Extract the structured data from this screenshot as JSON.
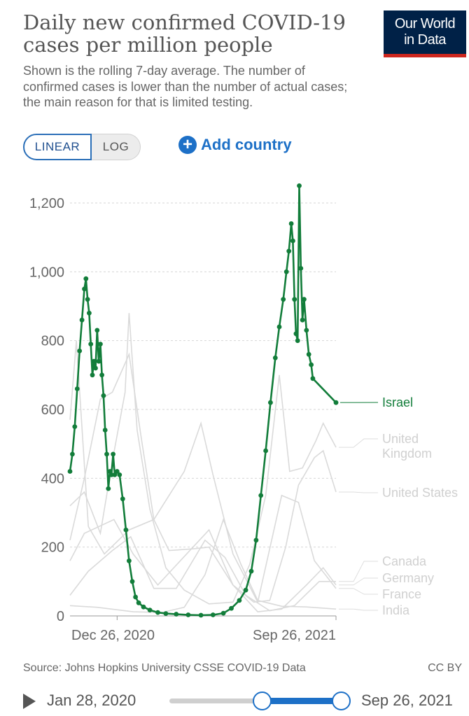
{
  "header": {
    "title": "Daily new confirmed COVID-19 cases per million people",
    "subtitle": "Shown is the rolling 7-day average. The number of confirmed cases is lower than the number of actual cases; the main reason for that is limited testing.",
    "logo_line1": "Our World",
    "logo_line2": "in Data"
  },
  "controls": {
    "linear_label": "LINEAR",
    "log_label": "LOG",
    "add_country_label": "Add country",
    "add_icon": "plus-circle-icon"
  },
  "footer": {
    "source": "Source: Johns Hopkins University CSSE COVID-19 Data",
    "license": "CC BY"
  },
  "timeline": {
    "start_label": "Jan 28, 2020",
    "end_label": "Sep 26, 2021",
    "selection_start_fraction": 0.54,
    "selection_end_fraction": 1.0,
    "play_icon": "play-icon"
  },
  "colors": {
    "highlight": "#127d3a",
    "muted": "#dadada",
    "brand_navy": "#002147",
    "brand_red": "#ce261e",
    "accent_blue": "#1d70c7"
  },
  "chart_data": {
    "type": "line",
    "title": "Daily new confirmed COVID-19 cases per million people",
    "ylim": [
      0,
      1250
    ],
    "y_ticks": [
      0,
      200,
      400,
      600,
      800,
      1000,
      1200
    ],
    "y_tick_labels": [
      "0",
      "200",
      "400",
      "600",
      "800",
      "1,000",
      "1,200"
    ],
    "x_range": [
      "2020-10-28",
      "2021-09-26"
    ],
    "x_ticks": [
      "2020-12-26",
      "2021-09-26"
    ],
    "x_tick_labels": [
      "Dec 26, 2020",
      "Sep 26, 2021"
    ],
    "grid": "horizontal-dashed",
    "legend_placement": "right, at line ends",
    "highlighted_series": "Israel",
    "series": [
      {
        "name": "Israel",
        "highlight": true,
        "points": [
          [
            "2020-10-28",
            420
          ],
          [
            "2020-10-31",
            470
          ],
          [
            "2020-11-03",
            550
          ],
          [
            "2020-11-06",
            660
          ],
          [
            "2020-11-09",
            770
          ],
          [
            "2020-11-12",
            860
          ],
          [
            "2020-11-15",
            950
          ],
          [
            "2020-11-17",
            980
          ],
          [
            "2020-11-19",
            920
          ],
          [
            "2020-11-21",
            880
          ],
          [
            "2020-11-23",
            790
          ],
          [
            "2020-11-25",
            700
          ],
          [
            "2020-11-27",
            740
          ],
          [
            "2020-11-29",
            720
          ],
          [
            "2020-12-01",
            830
          ],
          [
            "2020-12-03",
            740
          ],
          [
            "2020-12-05",
            790
          ],
          [
            "2020-12-07",
            700
          ],
          [
            "2020-12-09",
            640
          ],
          [
            "2020-12-11",
            540
          ],
          [
            "2020-12-13",
            470
          ],
          [
            "2020-12-15",
            370
          ],
          [
            "2020-12-17",
            420
          ],
          [
            "2020-12-19",
            410
          ],
          [
            "2020-12-21",
            470
          ],
          [
            "2020-12-23",
            410
          ],
          [
            "2020-12-26",
            420
          ],
          [
            "2020-12-29",
            410
          ],
          [
            "2021-01-02",
            340
          ],
          [
            "2021-01-06",
            250
          ],
          [
            "2021-01-10",
            160
          ],
          [
            "2021-01-14",
            100
          ],
          [
            "2021-01-18",
            55
          ],
          [
            "2021-01-22",
            38
          ],
          [
            "2021-01-28",
            26
          ],
          [
            "2021-02-05",
            17
          ],
          [
            "2021-02-15",
            10
          ],
          [
            "2021-02-25",
            7
          ],
          [
            "2021-03-10",
            5
          ],
          [
            "2021-03-25",
            3
          ],
          [
            "2021-04-10",
            2
          ],
          [
            "2021-04-25",
            3
          ],
          [
            "2021-05-08",
            8
          ],
          [
            "2021-05-18",
            22
          ],
          [
            "2021-05-28",
            45
          ],
          [
            "2021-06-05",
            75
          ],
          [
            "2021-06-12",
            130
          ],
          [
            "2021-06-18",
            220
          ],
          [
            "2021-06-24",
            350
          ],
          [
            "2021-06-30",
            480
          ],
          [
            "2021-07-06",
            620
          ],
          [
            "2021-07-12",
            750
          ],
          [
            "2021-07-17",
            840
          ],
          [
            "2021-07-22",
            920
          ],
          [
            "2021-07-26",
            1000
          ],
          [
            "2021-07-29",
            1060
          ],
          [
            "2021-08-01",
            1140
          ],
          [
            "2021-08-03",
            1090
          ],
          [
            "2021-08-05",
            920
          ],
          [
            "2021-08-07",
            820
          ],
          [
            "2021-08-09",
            800
          ],
          [
            "2021-08-11",
            1250
          ],
          [
            "2021-08-13",
            1010
          ],
          [
            "2021-08-15",
            860
          ],
          [
            "2021-08-17",
            920
          ],
          [
            "2021-08-20",
            830
          ],
          [
            "2021-08-23",
            760
          ],
          [
            "2021-08-26",
            730
          ],
          [
            "2021-08-28",
            690
          ],
          [
            "2021-09-26",
            620
          ]
        ]
      },
      {
        "name": "United Kingdom",
        "points": [
          [
            "2020-10-28",
            320
          ],
          [
            "2020-11-15",
            360
          ],
          [
            "2020-12-05",
            240
          ],
          [
            "2020-12-20",
            450
          ],
          [
            "2021-01-05",
            650
          ],
          [
            "2021-01-10",
            880
          ],
          [
            "2021-01-20",
            540
          ],
          [
            "2021-02-05",
            310
          ],
          [
            "2021-02-25",
            140
          ],
          [
            "2021-03-20",
            75
          ],
          [
            "2021-04-20",
            35
          ],
          [
            "2021-05-20",
            40
          ],
          [
            "2021-06-10",
            150
          ],
          [
            "2021-06-30",
            350
          ],
          [
            "2021-07-17",
            700
          ],
          [
            "2021-07-30",
            420
          ],
          [
            "2021-08-15",
            430
          ],
          [
            "2021-09-01",
            510
          ],
          [
            "2021-09-10",
            560
          ],
          [
            "2021-09-26",
            490
          ]
        ]
      },
      {
        "name": "United States",
        "points": [
          [
            "2020-10-28",
            220
          ],
          [
            "2020-11-15",
            400
          ],
          [
            "2020-12-05",
            630
          ],
          [
            "2020-12-20",
            650
          ],
          [
            "2021-01-10",
            760
          ],
          [
            "2021-01-25",
            520
          ],
          [
            "2021-02-10",
            280
          ],
          [
            "2021-03-01",
            190
          ],
          [
            "2021-04-01",
            195
          ],
          [
            "2021-04-20",
            200
          ],
          [
            "2021-05-20",
            90
          ],
          [
            "2021-06-15",
            40
          ],
          [
            "2021-07-05",
            45
          ],
          [
            "2021-07-25",
            200
          ],
          [
            "2021-08-10",
            380
          ],
          [
            "2021-08-30",
            460
          ],
          [
            "2021-09-10",
            480
          ],
          [
            "2021-09-26",
            360
          ]
        ]
      },
      {
        "name": "Canada",
        "points": [
          [
            "2020-10-28",
            60
          ],
          [
            "2020-11-20",
            130
          ],
          [
            "2020-12-20",
            190
          ],
          [
            "2021-01-12",
            230
          ],
          [
            "2021-02-10",
            80
          ],
          [
            "2021-03-10",
            80
          ],
          [
            "2021-04-15",
            220
          ],
          [
            "2021-05-10",
            170
          ],
          [
            "2021-06-05",
            60
          ],
          [
            "2021-07-05",
            15
          ],
          [
            "2021-08-05",
            30
          ],
          [
            "2021-09-05",
            100
          ],
          [
            "2021-09-26",
            100
          ]
        ]
      },
      {
        "name": "Germany",
        "points": [
          [
            "2020-10-28",
            160
          ],
          [
            "2020-11-15",
            240
          ],
          [
            "2020-12-22",
            280
          ],
          [
            "2021-01-15",
            180
          ],
          [
            "2021-02-15",
            90
          ],
          [
            "2021-03-15",
            160
          ],
          [
            "2021-04-20",
            250
          ],
          [
            "2021-05-20",
            90
          ],
          [
            "2021-06-20",
            12
          ],
          [
            "2021-07-20",
            20
          ],
          [
            "2021-08-20",
            90
          ],
          [
            "2021-09-10",
            140
          ],
          [
            "2021-09-26",
            90
          ]
        ]
      },
      {
        "name": "France",
        "points": [
          [
            "2020-10-28",
            570
          ],
          [
            "2020-11-05",
            800
          ],
          [
            "2020-11-20",
            260
          ],
          [
            "2020-12-10",
            180
          ],
          [
            "2021-01-10",
            250
          ],
          [
            "2021-02-10",
            280
          ],
          [
            "2021-03-20",
            420
          ],
          [
            "2021-04-10",
            560
          ],
          [
            "2021-04-25",
            410
          ],
          [
            "2021-05-20",
            180
          ],
          [
            "2021-06-20",
            40
          ],
          [
            "2021-07-20",
            350
          ],
          [
            "2021-08-10",
            330
          ],
          [
            "2021-08-30",
            160
          ],
          [
            "2021-09-26",
            80
          ]
        ]
      },
      {
        "name": "India",
        "points": [
          [
            "2020-10-28",
            30
          ],
          [
            "2020-12-01",
            25
          ],
          [
            "2021-01-15",
            12
          ],
          [
            "2021-02-20",
            10
          ],
          [
            "2021-03-20",
            25
          ],
          [
            "2021-04-15",
            120
          ],
          [
            "2021-05-08",
            280
          ],
          [
            "2021-05-30",
            150
          ],
          [
            "2021-06-20",
            45
          ],
          [
            "2021-07-20",
            28
          ],
          [
            "2021-08-20",
            26
          ],
          [
            "2021-09-26",
            20
          ]
        ]
      }
    ]
  }
}
